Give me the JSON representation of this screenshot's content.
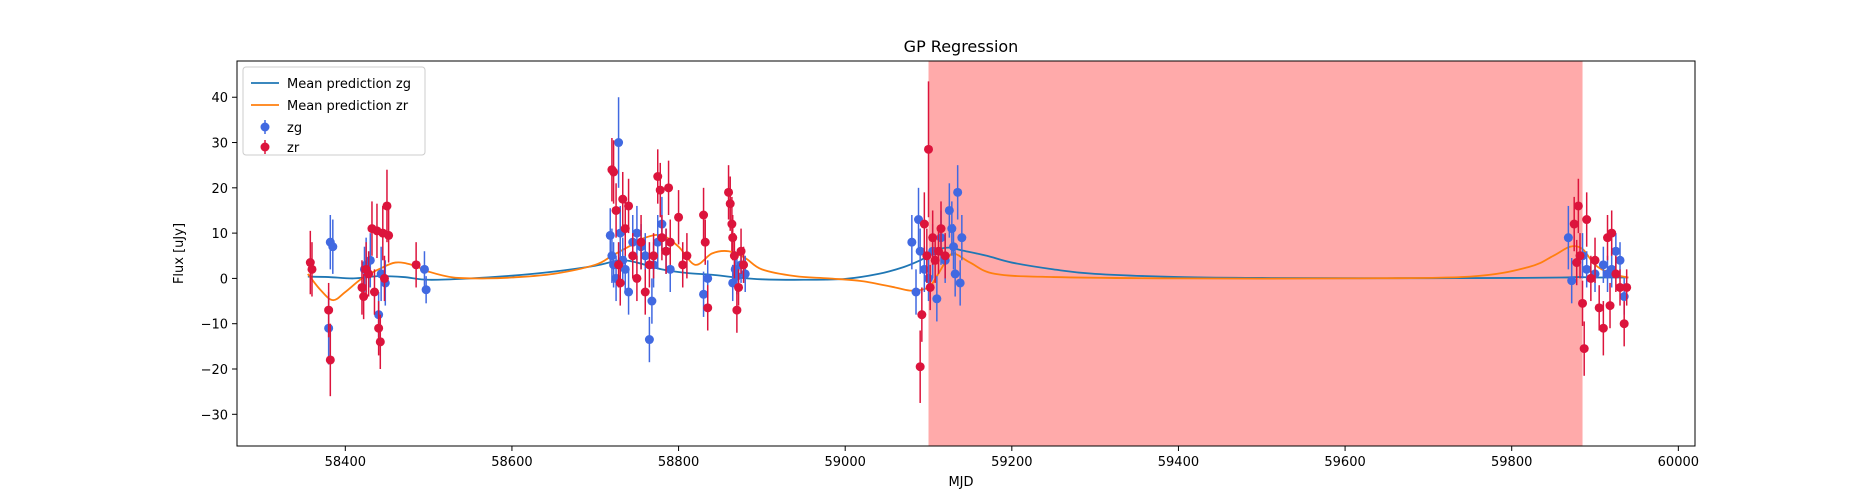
{
  "chart_data": {
    "type": "scatter",
    "title": "GP Regression",
    "xlabel": "MJD",
    "ylabel": "Flux [uJy]",
    "xlim": [
      58270,
      60020
    ],
    "ylim": [
      -37,
      48
    ],
    "xticks": [
      58400,
      58600,
      58800,
      59000,
      59200,
      59400,
      59600,
      59800,
      60000
    ],
    "yticks": [
      -30,
      -20,
      -10,
      0,
      10,
      20,
      30,
      40
    ],
    "shaded_region": {
      "x": [
        59100,
        59885
      ],
      "color": "#ffaaaa"
    },
    "legend_position": "upper left",
    "series": [
      {
        "name": "Mean prediction zg",
        "kind": "line",
        "color": "#1f77b4",
        "x": [
          58355,
          58380,
          58410,
          58440,
          58470,
          58500,
          58550,
          58600,
          58650,
          58700,
          58730,
          58750,
          58780,
          58810,
          58840,
          58870,
          58900,
          58950,
          59000,
          59040,
          59070,
          59090,
          59100,
          59110,
          59125,
          59140,
          59170,
          59200,
          59250,
          59300,
          59400,
          59500,
          59600,
          59700,
          59800,
          59860,
          59880,
          59900,
          59940
        ],
        "y": [
          0.4,
          0.3,
          0.0,
          0.5,
          0.3,
          -0.3,
          0.0,
          0.6,
          1.5,
          2.8,
          4.0,
          3.5,
          2.0,
          1.2,
          0.8,
          0.2,
          -0.2,
          -0.3,
          -0.1,
          1.0,
          2.5,
          4.0,
          5.0,
          6.3,
          6.8,
          6.2,
          5.0,
          3.5,
          2.0,
          1.0,
          0.3,
          0.1,
          0.05,
          0.05,
          0.1,
          0.2,
          0.3,
          0.2,
          0.2
        ]
      },
      {
        "name": "Mean prediction zr",
        "kind": "line",
        "color": "#ff7f0e",
        "x": [
          58355,
          58370,
          58385,
          58400,
          58420,
          58440,
          58460,
          58480,
          58500,
          58530,
          58570,
          58600,
          58650,
          58700,
          58720,
          58740,
          58760,
          58780,
          58800,
          58820,
          58840,
          58860,
          58880,
          58900,
          58940,
          58980,
          59020,
          59060,
          59080,
          59100,
          59110,
          59120,
          59130,
          59150,
          59180,
          59250,
          59400,
          59600,
          59750,
          59820,
          59850,
          59870,
          59885,
          59900,
          59920,
          59940
        ],
        "y": [
          1.0,
          -2.5,
          -4.8,
          -3.0,
          0.0,
          2.0,
          3.5,
          3.0,
          1.5,
          0.2,
          0.0,
          0.2,
          1.0,
          3.0,
          5.0,
          7.0,
          9.0,
          9.5,
          7.0,
          3.0,
          5.5,
          6.0,
          4.5,
          2.0,
          0.5,
          0.0,
          -0.6,
          -2.0,
          -2.7,
          -2.0,
          0.5,
          3.5,
          5.5,
          3.5,
          1.0,
          0.3,
          0.0,
          0.0,
          0.4,
          2.5,
          5.0,
          7.0,
          6.5,
          3.0,
          1.0,
          0.2
        ]
      },
      {
        "name": "zg",
        "kind": "errorbar",
        "color": "#4169e1",
        "points": [
          [
            58380,
            -11,
            8
          ],
          [
            58382,
            8,
            6
          ],
          [
            58385,
            7,
            6
          ],
          [
            58423,
            2,
            5
          ],
          [
            58425,
            3,
            6
          ],
          [
            58430,
            4,
            6
          ],
          [
            58440,
            -8,
            5
          ],
          [
            58443,
            1,
            6
          ],
          [
            58448,
            -1,
            5
          ],
          [
            58495,
            2,
            4
          ],
          [
            58497,
            -2.5,
            3
          ],
          [
            58718,
            9.5,
            6
          ],
          [
            58720,
            5,
            6
          ],
          [
            58722,
            3,
            5
          ],
          [
            58725,
            0,
            5
          ],
          [
            58728,
            30,
            10
          ],
          [
            58730,
            10,
            6
          ],
          [
            58733,
            4,
            5
          ],
          [
            58736,
            2,
            5
          ],
          [
            58740,
            -3,
            5
          ],
          [
            58745,
            8,
            6
          ],
          [
            58750,
            10,
            6
          ],
          [
            58755,
            7,
            5
          ],
          [
            58760,
            5,
            5
          ],
          [
            58765,
            -13.5,
            5
          ],
          [
            58768,
            -5,
            5
          ],
          [
            58770,
            3,
            5
          ],
          [
            58775,
            8,
            6
          ],
          [
            58780,
            12,
            6
          ],
          [
            58785,
            6,
            5
          ],
          [
            58790,
            2,
            5
          ],
          [
            58830,
            -3.5,
            5
          ],
          [
            58835,
            0,
            4
          ],
          [
            58865,
            -1,
            4
          ],
          [
            58868,
            2,
            4
          ],
          [
            58870,
            0.5,
            4
          ],
          [
            58875,
            3,
            4
          ],
          [
            58880,
            1,
            4
          ],
          [
            59080,
            8,
            6
          ],
          [
            59085,
            -3,
            5
          ],
          [
            59088,
            13,
            7
          ],
          [
            59090,
            6,
            5
          ],
          [
            59095,
            2,
            5
          ],
          [
            59100,
            0,
            5
          ],
          [
            59105,
            6,
            6
          ],
          [
            59110,
            -4.5,
            5
          ],
          [
            59115,
            9,
            6
          ],
          [
            59120,
            4,
            5
          ],
          [
            59125,
            15,
            6
          ],
          [
            59128,
            11,
            6
          ],
          [
            59130,
            7,
            5
          ],
          [
            59132,
            1,
            5
          ],
          [
            59135,
            19,
            6
          ],
          [
            59138,
            -1,
            5
          ],
          [
            59140,
            9,
            5
          ],
          [
            59868,
            9,
            7
          ],
          [
            59872,
            -0.5,
            5
          ],
          [
            59885,
            5,
            5
          ],
          [
            59890,
            2,
            4
          ],
          [
            59900,
            1,
            4
          ],
          [
            59910,
            3,
            4
          ],
          [
            59915,
            1,
            4
          ],
          [
            59920,
            2,
            4
          ],
          [
            59925,
            6,
            4
          ],
          [
            59930,
            4,
            4
          ],
          [
            59935,
            -4,
            4
          ]
        ]
      },
      {
        "name": "zr",
        "kind": "errorbar",
        "color": "#dc143c",
        "points": [
          [
            58358,
            3.5,
            7
          ],
          [
            58360,
            2,
            6
          ],
          [
            58380,
            -7,
            6
          ],
          [
            58382,
            -18,
            8
          ],
          [
            58420,
            -2,
            6
          ],
          [
            58422,
            -4,
            5
          ],
          [
            58425,
            2,
            6
          ],
          [
            58428,
            1,
            5
          ],
          [
            58432,
            11,
            6
          ],
          [
            58435,
            -3,
            5
          ],
          [
            58438,
            10.5,
            6
          ],
          [
            58440,
            -11,
            6
          ],
          [
            58442,
            -14,
            6
          ],
          [
            58445,
            10,
            6
          ],
          [
            58447,
            0,
            5
          ],
          [
            58450,
            16,
            8
          ],
          [
            58452,
            9.5,
            6
          ],
          [
            58485,
            3,
            5
          ],
          [
            58720,
            24,
            7
          ],
          [
            58722,
            23.5,
            7
          ],
          [
            58725,
            15,
            6
          ],
          [
            58728,
            3,
            5
          ],
          [
            58730,
            -1,
            5
          ],
          [
            58733,
            17.5,
            6
          ],
          [
            58736,
            11,
            6
          ],
          [
            58740,
            16,
            6
          ],
          [
            58745,
            5,
            5
          ],
          [
            58750,
            0,
            5
          ],
          [
            58755,
            8,
            6
          ],
          [
            58760,
            -3,
            5
          ],
          [
            58765,
            3,
            5
          ],
          [
            58770,
            5,
            5
          ],
          [
            58775,
            22.5,
            6
          ],
          [
            58778,
            19.5,
            6
          ],
          [
            58780,
            9,
            5
          ],
          [
            58785,
            6,
            5
          ],
          [
            58788,
            20,
            6
          ],
          [
            58790,
            8,
            5
          ],
          [
            58800,
            13.5,
            6
          ],
          [
            58805,
            3,
            5
          ],
          [
            58810,
            5,
            5
          ],
          [
            58830,
            14,
            6
          ],
          [
            58832,
            8,
            5
          ],
          [
            58835,
            -6.5,
            5
          ],
          [
            58860,
            19,
            6
          ],
          [
            58862,
            16.5,
            6
          ],
          [
            58864,
            12,
            6
          ],
          [
            58865,
            9,
            5
          ],
          [
            58867,
            5,
            5
          ],
          [
            58870,
            -7,
            5
          ],
          [
            58872,
            -2,
            4
          ],
          [
            58875,
            6,
            5
          ],
          [
            58878,
            3,
            4
          ],
          [
            59090,
            -19.5,
            8
          ],
          [
            59092,
            -8,
            6
          ],
          [
            59095,
            12,
            7
          ],
          [
            59098,
            5,
            6
          ],
          [
            59100,
            28.5,
            15
          ],
          [
            59102,
            -2,
            5
          ],
          [
            59105,
            9,
            6
          ],
          [
            59108,
            4,
            5
          ],
          [
            59112,
            6,
            5
          ],
          [
            59115,
            11,
            6
          ],
          [
            59120,
            5,
            5
          ],
          [
            59875,
            12,
            6
          ],
          [
            59878,
            3.5,
            5
          ],
          [
            59880,
            16,
            6
          ],
          [
            59882,
            5,
            5
          ],
          [
            59885,
            -5.5,
            5
          ],
          [
            59887,
            -15.5,
            6
          ],
          [
            59890,
            13,
            6
          ],
          [
            59895,
            0,
            5
          ],
          [
            59900,
            4,
            5
          ],
          [
            59905,
            -6.5,
            5
          ],
          [
            59910,
            -11,
            6
          ],
          [
            59915,
            9,
            5
          ],
          [
            59918,
            -6,
            5
          ],
          [
            59920,
            10,
            5
          ],
          [
            59925,
            1,
            4
          ],
          [
            59930,
            -2,
            4
          ],
          [
            59935,
            -10,
            5
          ],
          [
            59938,
            -2,
            4
          ]
        ]
      }
    ]
  }
}
